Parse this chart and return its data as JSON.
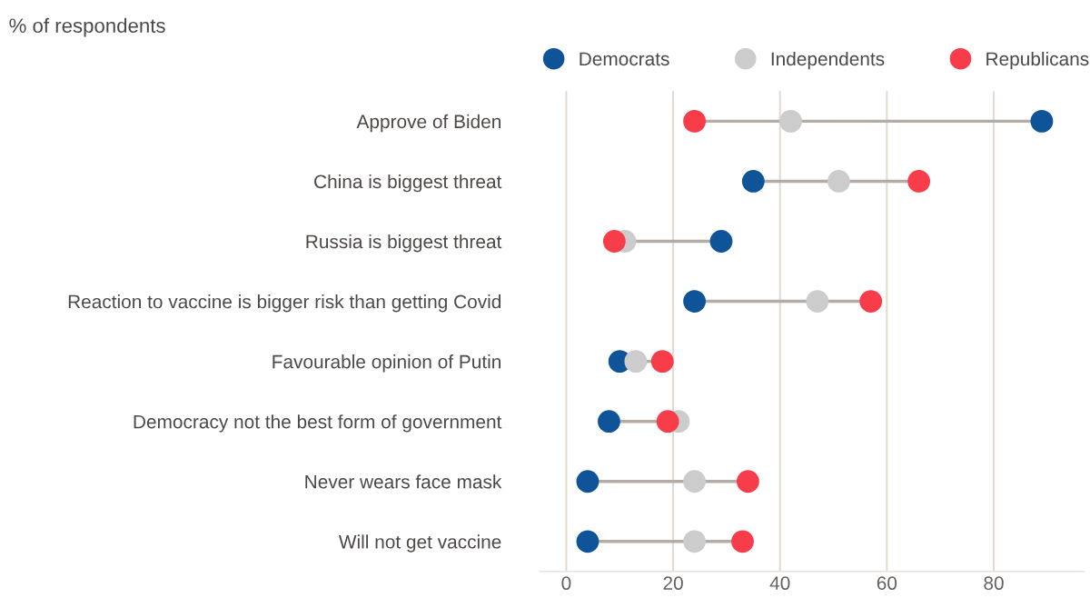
{
  "chart_data": {
    "type": "scatter",
    "orientation": "horizontal",
    "title": "% of respondents",
    "categories": [
      "Approve of Biden",
      "China is biggest threat",
      "Russia is biggest threat",
      "Reaction to vaccine is bigger risk than getting Covid",
      "Favourable opinion of Putin",
      "Democracy not the best form of government",
      "Never wears face mask",
      "Will not get vaccine"
    ],
    "series": [
      {
        "name": "Democrats",
        "color": "#0f5499",
        "values": [
          89,
          35,
          29,
          24,
          10,
          8,
          4,
          4
        ]
      },
      {
        "name": "Independents",
        "color": "#cccccc",
        "values": [
          42,
          51,
          11,
          47,
          13,
          21,
          24,
          24
        ]
      },
      {
        "name": "Republicans",
        "color": "#f83d4a",
        "values": [
          24,
          66,
          9,
          57,
          18,
          19,
          34,
          33
        ]
      }
    ],
    "xlim": [
      -5,
      97
    ],
    "xticks": [
      0,
      20,
      40,
      60,
      80
    ],
    "grid": "x",
    "legend": "top",
    "marker": "circle"
  }
}
